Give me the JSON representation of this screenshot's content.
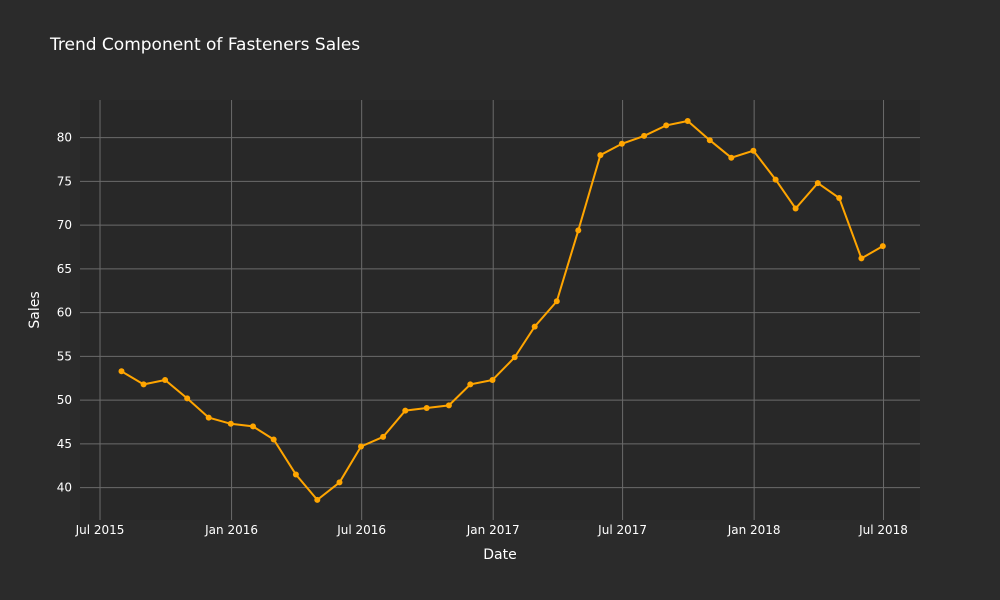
{
  "chart_data": {
    "type": "line",
    "title": "Trend Component of Fasteners Sales",
    "xlabel": "Date",
    "ylabel": "Sales",
    "x_ticks": [
      {
        "date": "2015-07-01",
        "label": "Jul 2015"
      },
      {
        "date": "2016-01-01",
        "label": "Jan 2016"
      },
      {
        "date": "2016-07-01",
        "label": "Jul 2016"
      },
      {
        "date": "2017-01-01",
        "label": "Jan 2017"
      },
      {
        "date": "2017-07-01",
        "label": "Jul 2017"
      },
      {
        "date": "2018-01-01",
        "label": "Jan 2018"
      },
      {
        "date": "2018-07-01",
        "label": "Jul 2018"
      }
    ],
    "y_ticks": [
      40,
      45,
      50,
      55,
      60,
      65,
      70,
      75,
      80
    ],
    "xlim": [
      "2015-06-03",
      "2018-08-21"
    ],
    "ylim": [
      36.3,
      84.3
    ],
    "grid": true,
    "colors": {
      "background": "#2b2b2b",
      "plot_background": "#282828",
      "grid": "#6b6b6b",
      "line": "#ffa500"
    },
    "series": [
      {
        "x": [
          "2015-07-31",
          "2015-08-31",
          "2015-09-30",
          "2015-10-31",
          "2015-11-30",
          "2015-12-31",
          "2016-01-31",
          "2016-02-29",
          "2016-03-31",
          "2016-04-30",
          "2016-05-31",
          "2016-06-30",
          "2016-07-31",
          "2016-08-31",
          "2016-09-30",
          "2016-10-31",
          "2016-11-30",
          "2016-12-31",
          "2017-01-31",
          "2017-02-28",
          "2017-03-31",
          "2017-04-30",
          "2017-05-31",
          "2017-06-30",
          "2017-07-31",
          "2017-08-31",
          "2017-09-30",
          "2017-10-31",
          "2017-11-30",
          "2017-12-31",
          "2018-01-31",
          "2018-02-28",
          "2018-03-31",
          "2018-04-30",
          "2018-05-31",
          "2018-06-30"
        ],
        "values": [
          53.3,
          51.8,
          52.3,
          50.2,
          48.0,
          47.3,
          47.0,
          45.5,
          41.5,
          38.6,
          40.6,
          44.7,
          45.8,
          48.8,
          49.1,
          49.4,
          51.8,
          52.3,
          54.9,
          58.4,
          61.3,
          69.4,
          78.0,
          79.3,
          80.2,
          81.4,
          81.9,
          79.7,
          77.7,
          78.5,
          75.2,
          71.9,
          74.8,
          73.1,
          66.2,
          67.6
        ]
      }
    ]
  }
}
